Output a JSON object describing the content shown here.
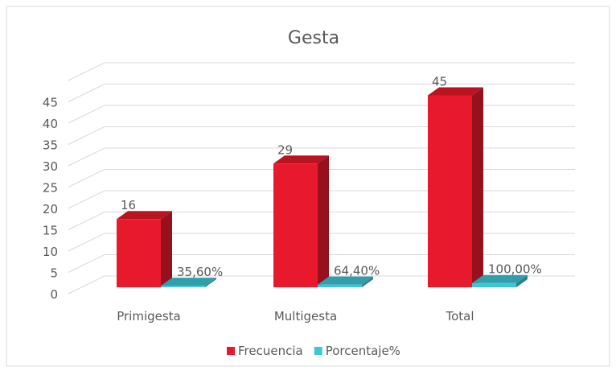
{
  "chart_data": {
    "type": "bar3d",
    "title": "Gesta",
    "categories": [
      "Primigesta",
      "Multigesta",
      "Total"
    ],
    "series": [
      {
        "name": "Frecuencia",
        "color": "#e8192c",
        "values": [
          16,
          29,
          45
        ]
      },
      {
        "name": "Porcentaje%",
        "color": "#3fc6d6",
        "values": [
          0.356,
          0.644,
          1
        ],
        "value_labels": [
          "35,60%",
          "64,40%",
          "100,00%"
        ]
      }
    ],
    "ylim": [
      0,
      50
    ],
    "yticks": [
      0,
      5,
      10,
      15,
      20,
      25,
      30,
      35,
      40,
      45
    ],
    "grid": true,
    "legend": "bottom"
  }
}
